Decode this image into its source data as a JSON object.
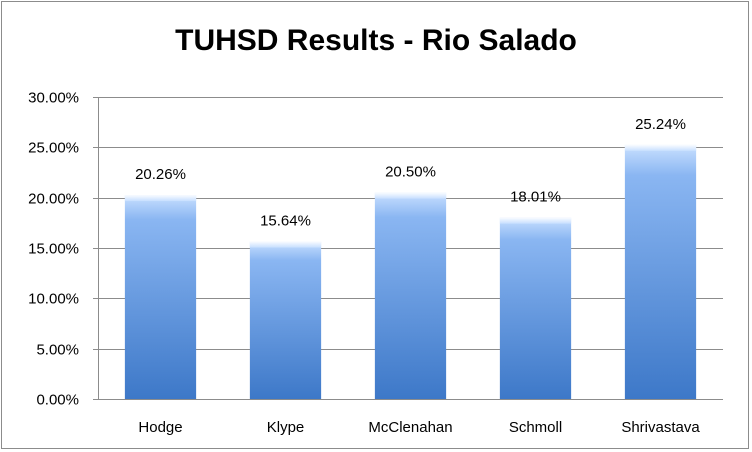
{
  "chart_data": {
    "type": "bar",
    "title": "TUHSD Results - Rio Salado",
    "xlabel": "",
    "ylabel": "",
    "categories": [
      "Hodge",
      "Klype",
      "McClenahan",
      "Schmoll",
      "Shrivastava"
    ],
    "values": [
      20.26,
      15.64,
      20.5,
      18.01,
      25.24
    ],
    "data_labels": [
      "20.26%",
      "15.64%",
      "20.50%",
      "18.01%",
      "25.24%"
    ],
    "ylim": [
      0,
      30
    ],
    "yticks": [
      0,
      5,
      10,
      15,
      20,
      25,
      30
    ],
    "ytick_labels": [
      "0.00%",
      "5.00%",
      "10.00%",
      "15.00%",
      "20.00%",
      "25.00%",
      "30.00%"
    ],
    "grid": true,
    "legend": "none",
    "colors": {
      "bar_top": "#c9e0ff",
      "bar_mid": "#8ab6f2",
      "bar_bottom": "#3d78c8",
      "grid": "#8c8c8c",
      "axis": "#8c8c8c"
    }
  }
}
